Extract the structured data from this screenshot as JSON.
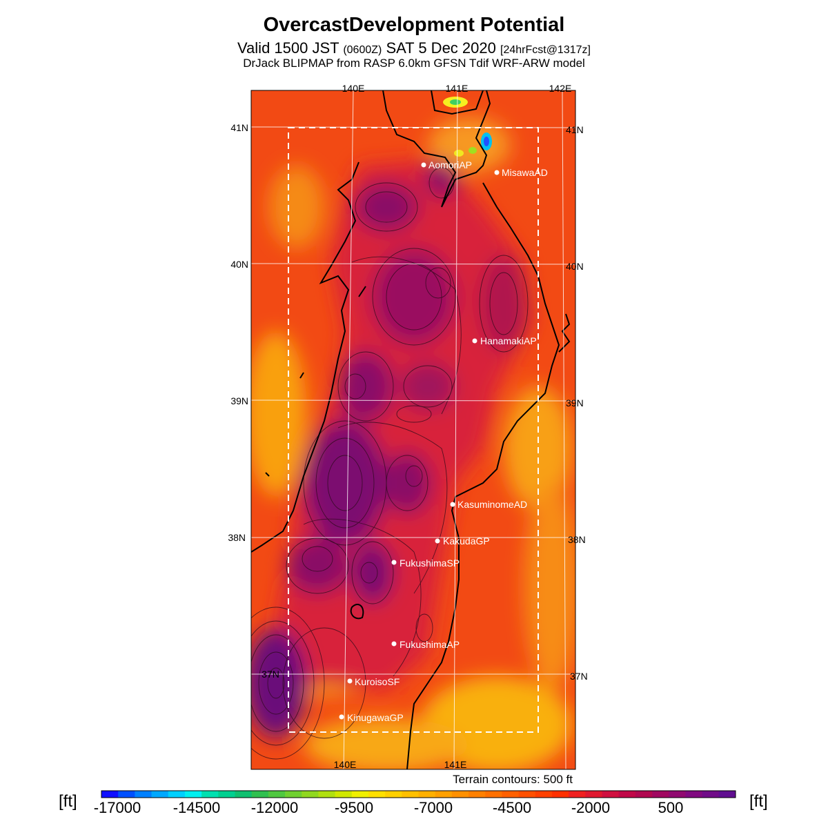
{
  "header": {
    "title": "OvercastDevelopment Potential",
    "subtitle_valid": "Valid 1500 JST",
    "subtitle_utc": "(0600Z)",
    "subtitle_date": "SAT 5 Dec 2020",
    "subtitle_fcst": "[24hrFcst@1317z]",
    "model_line": "DrJack BLIPMAP from RASP 6.0km GFSN Tdif WRF-ARW model"
  },
  "map": {
    "lon_labels_top": [
      "140E",
      "141E",
      "142E"
    ],
    "lon_labels_bottom": [
      "140E",
      "141E"
    ],
    "lat_labels_left": [
      "41N",
      "40N",
      "39N",
      "38N",
      "37N"
    ],
    "lat_labels_right": [
      "41N",
      "40N",
      "39N",
      "38N",
      "37N"
    ],
    "stations": [
      {
        "name": "AomoriAP"
      },
      {
        "name": "MisawaAD"
      },
      {
        "name": "HanamakiAP"
      },
      {
        "name": "KasuminomeAD"
      },
      {
        "name": "KakudaGP"
      },
      {
        "name": "FukushimaSP"
      },
      {
        "name": "FukushimaAP"
      },
      {
        "name": "KuroisoSF"
      },
      {
        "name": "KinugawaGP"
      }
    ]
  },
  "footer": {
    "terrain_note": "Terrain contours: 500 ft",
    "unit_left": "[ft]",
    "unit_right": "[ft]"
  },
  "colorbar": {
    "tick_labels": [
      "-17000",
      "-14500",
      "-12000",
      "-9500",
      "-7000",
      "-4500",
      "-2000",
      "500"
    ],
    "colors": [
      "#1010ff",
      "#0050ff",
      "#0080ff",
      "#00a8ff",
      "#00d0ff",
      "#00f0f0",
      "#00e0b0",
      "#00d090",
      "#10c070",
      "#30c050",
      "#50c840",
      "#70d030",
      "#90d820",
      "#b0e010",
      "#d0e800",
      "#f0f000",
      "#ffe000",
      "#ffd000",
      "#ffc000",
      "#ffb000",
      "#ffa000",
      "#ff9000",
      "#ff8000",
      "#ff7000",
      "#ff6000",
      "#ff5000",
      "#ff4000",
      "#ff3000",
      "#f02020",
      "#e01830",
      "#d01040",
      "#c00848",
      "#b00850",
      "#a00860",
      "#900a70",
      "#800a80",
      "#700c88",
      "#600e90"
    ]
  }
}
